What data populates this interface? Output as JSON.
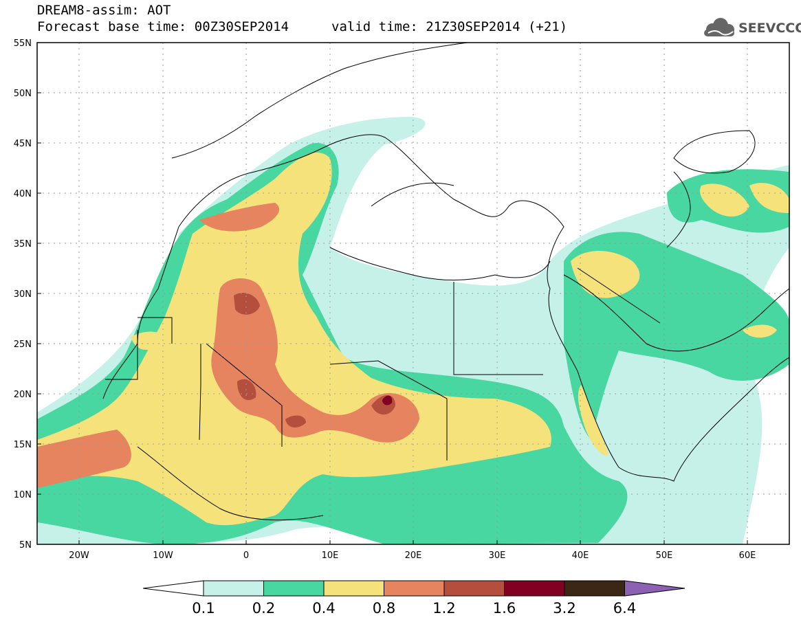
{
  "header": {
    "title": "DREAM8-assim: AOT",
    "base_time": "Forecast base time: 00Z30SEP2014",
    "valid_time": "valid time: 21Z30SEP2014 (+21)",
    "logo_text": "SEEVCCC",
    "logo_icon": "cloud-icon"
  },
  "map": {
    "lat_labels": [
      "55N",
      "50N",
      "45N",
      "40N",
      "35N",
      "30N",
      "25N",
      "20N",
      "15N",
      "10N",
      "5N"
    ],
    "lon_labels": [
      "20W",
      "10W",
      "0",
      "10E",
      "20E",
      "30E",
      "40E",
      "50E",
      "60E"
    ],
    "lat_range": [
      5,
      55
    ],
    "lon_range": [
      -25,
      65
    ],
    "grid": true
  },
  "colorbar": {
    "labels": [
      "0.1",
      "0.2",
      "0.4",
      "0.8",
      "1.2",
      "1.6",
      "3.2",
      "6.4"
    ],
    "colors": [
      "#c6f1e9",
      "#48d6a1",
      "#f5e27a",
      "#e5845f",
      "#b34f3c",
      "#820022",
      "#3c2615",
      "#8c61b3"
    ]
  }
}
